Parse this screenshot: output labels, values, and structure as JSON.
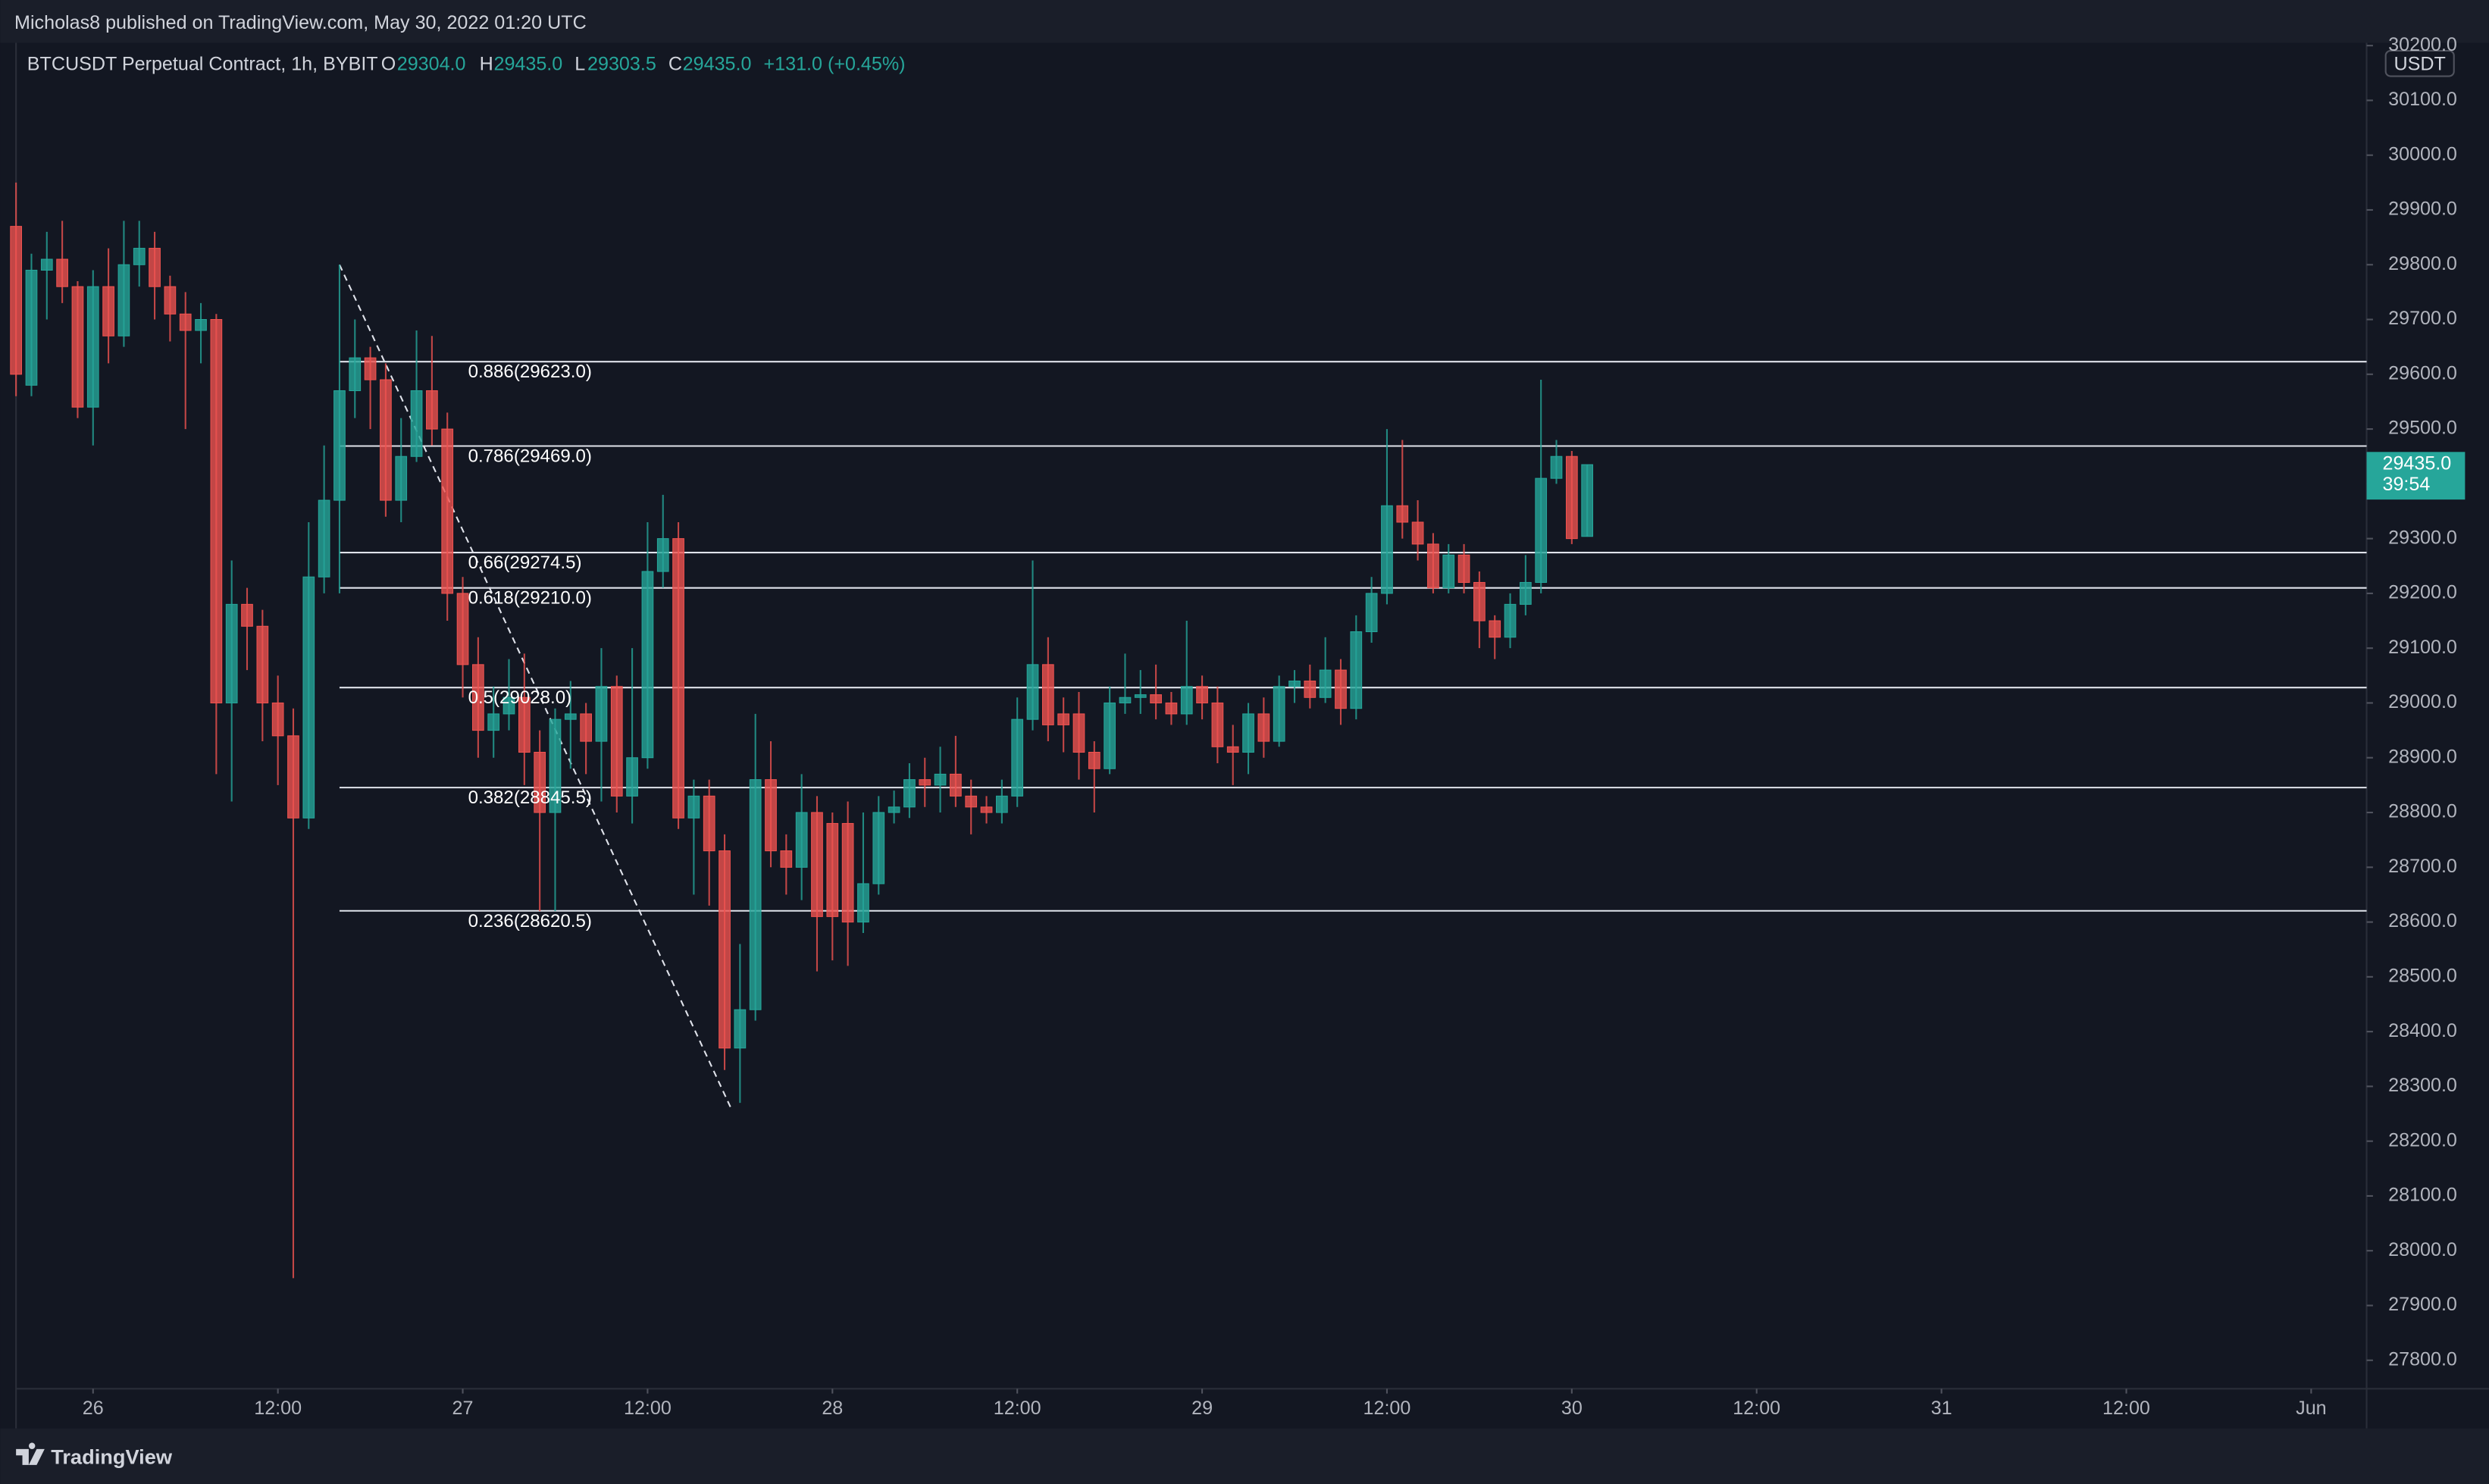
{
  "publisher": "Micholas8 published on TradingView.com, May 30, 2022 01:20 UTC",
  "legend": {
    "symbol": "BTCUSDT Perpetual Contract, 1h, BYBIT",
    "o_key": "O",
    "o": "29304.0",
    "h_key": "H",
    "h": "29435.0",
    "l_key": "L",
    "l": "29303.5",
    "c_key": "C",
    "c": "29435.0",
    "change": "+131.0 (+0.45%)"
  },
  "footer": "TradingView",
  "chart_data": {
    "type": "candlestick",
    "currency": "USDT",
    "up_color": "#26a69a",
    "down_color": "#ef5350",
    "xlim": [
      -5,
      147.6
    ],
    "ylim": [
      27748,
      30205
    ],
    "xticks": [
      {
        "value": 0,
        "label": "26"
      },
      {
        "value": 12,
        "label": "12:00"
      },
      {
        "value": 24,
        "label": "27"
      },
      {
        "value": 36,
        "label": "12:00"
      },
      {
        "value": 48,
        "label": "28"
      },
      {
        "value": 60,
        "label": "12:00"
      },
      {
        "value": 72,
        "label": "29"
      },
      {
        "value": 84,
        "label": "12:00"
      },
      {
        "value": 96,
        "label": "30"
      },
      {
        "value": 108,
        "label": "12:00"
      },
      {
        "value": 120,
        "label": "31"
      },
      {
        "value": 132,
        "label": "12:00"
      },
      {
        "value": 144,
        "label": "Jun"
      }
    ],
    "yticks": [
      {
        "value": 27800,
        "label": "27800.0"
      },
      {
        "value": 27900,
        "label": "27900.0"
      },
      {
        "value": 28000,
        "label": "28000.0"
      },
      {
        "value": 28100,
        "label": "28100.0"
      },
      {
        "value": 28200,
        "label": "28200.0"
      },
      {
        "value": 28300,
        "label": "28300.0"
      },
      {
        "value": 28400,
        "label": "28400.0"
      },
      {
        "value": 28500,
        "label": "28500.0"
      },
      {
        "value": 28600,
        "label": "28600.0"
      },
      {
        "value": 28700,
        "label": "28700.0"
      },
      {
        "value": 28800,
        "label": "28800.0"
      },
      {
        "value": 28900,
        "label": "28900.0"
      },
      {
        "value": 29000,
        "label": "29000.0"
      },
      {
        "value": 29100,
        "label": "29100.0"
      },
      {
        "value": 29200,
        "label": "29200.0"
      },
      {
        "value": 29300,
        "label": "29300.0"
      },
      {
        "value": 29400,
        "label": "29400.0"
      },
      {
        "value": 29500,
        "label": "29500.0"
      },
      {
        "value": 29600,
        "label": "29600.0"
      },
      {
        "value": 29700,
        "label": "29700.0"
      },
      {
        "value": 29800,
        "label": "29800.0"
      },
      {
        "value": 29900,
        "label": "29900.0"
      },
      {
        "value": 30000,
        "label": "30000.0"
      },
      {
        "value": 30100,
        "label": "30100.0"
      },
      {
        "value": 30200,
        "label": "30200.0"
      }
    ],
    "x": [
      -5,
      -4,
      -3,
      -2,
      -1,
      0,
      1,
      2,
      3,
      4,
      5,
      6,
      7,
      8,
      9,
      10,
      11,
      12,
      13,
      14,
      15,
      16,
      17,
      18,
      19,
      20,
      21,
      22,
      23,
      24,
      25,
      26,
      27,
      28,
      29,
      30,
      31,
      32,
      33,
      34,
      35,
      36,
      37,
      38,
      39,
      40,
      41,
      42,
      43,
      44,
      45,
      46,
      47,
      48,
      49,
      50,
      51,
      52,
      53,
      54,
      55,
      56,
      57,
      58,
      59,
      60,
      61,
      62,
      63,
      64,
      65,
      66,
      67,
      68,
      69,
      70,
      71,
      72,
      73,
      74,
      75,
      76,
      77,
      78,
      79,
      80,
      81,
      82,
      83,
      84,
      85,
      86,
      87,
      88,
      89,
      90,
      91,
      92,
      93,
      94,
      95,
      96,
      97
    ],
    "open": [
      29870,
      29580,
      29790,
      29810,
      29760,
      29540,
      29760,
      29670,
      29800,
      29830,
      29760,
      29710,
      29680,
      29700,
      29000,
      29180,
      29140,
      29000,
      28940,
      28790,
      29230,
      29370,
      29570,
      29630,
      29590,
      29370,
      29450,
      29570,
      29500,
      29200,
      29070,
      28950,
      28980,
      29010,
      28910,
      28800,
      28970,
      28980,
      28930,
      29030,
      28830,
      28900,
      29240,
      29300,
      28790,
      28830,
      28730,
      28370,
      28440,
      28860,
      28730,
      28700,
      28800,
      28780,
      28780,
      28600,
      28670,
      28800,
      28810,
      28860,
      28850,
      28870,
      28830,
      28810,
      28800,
      28830,
      28970,
      29070,
      28980,
      28980,
      28910,
      28880,
      29000,
      29010,
      29015,
      29000,
      28980,
      29030,
      29000,
      28920,
      28910,
      28980,
      28930,
      29030,
      29040,
      29010,
      29060,
      28990,
      29130,
      29200,
      29360,
      29330,
      29290,
      29210,
      29270,
      29220,
      29150,
      29120,
      29180,
      29220,
      29410,
      29450,
      29304
    ],
    "high": [
      29950,
      29820,
      29860,
      29880,
      29770,
      29790,
      29830,
      29880,
      29880,
      29860,
      29780,
      29750,
      29730,
      29710,
      29260,
      29210,
      29170,
      29050,
      28990,
      29330,
      29470,
      29800,
      29700,
      29650,
      29620,
      29520,
      29680,
      29670,
      29530,
      29230,
      29120,
      29030,
      29080,
      29090,
      28950,
      28990,
      29040,
      29000,
      29100,
      29050,
      29100,
      29330,
      29380,
      29330,
      28860,
      28860,
      28760,
      28560,
      28980,
      28930,
      28760,
      28870,
      28830,
      28800,
      28820,
      28800,
      28830,
      28840,
      28890,
      28900,
      28920,
      28940,
      28860,
      28830,
      28860,
      29010,
      29260,
      29120,
      29010,
      29020,
      28930,
      29030,
      29090,
      29060,
      29070,
      29020,
      29150,
      29050,
      29030,
      28960,
      29000,
      29010,
      29050,
      29060,
      29070,
      29120,
      29080,
      29160,
      29230,
      29500,
      29480,
      29370,
      29310,
      29290,
      29290,
      29240,
      29160,
      29200,
      29270,
      29590,
      29480,
      29460,
      29435
    ],
    "low": [
      29560,
      29560,
      29700,
      29730,
      29520,
      29470,
      29620,
      29650,
      29760,
      29700,
      29660,
      29500,
      29620,
      28870,
      28820,
      29060,
      28930,
      28850,
      27950,
      28770,
      29200,
      29200,
      29520,
      29500,
      29340,
      29330,
      29440,
      29470,
      29150,
      29010,
      28900,
      28900,
      28950,
      28850,
      28620,
      28620,
      28880,
      28870,
      28820,
      28800,
      28780,
      28880,
      29210,
      28770,
      28650,
      28630,
      28330,
      28270,
      28420,
      28700,
      28650,
      28640,
      28510,
      28530,
      28520,
      28580,
      28650,
      28780,
      28790,
      28810,
      28800,
      28810,
      28760,
      28780,
      28780,
      28810,
      28950,
      28930,
      28910,
      28860,
      28800,
      28870,
      28980,
      28980,
      28970,
      28960,
      28960,
      28970,
      28890,
      28850,
      28870,
      28900,
      28920,
      29000,
      28990,
      29000,
      28960,
      28970,
      29110,
      29180,
      29300,
      29260,
      29200,
      29200,
      29200,
      29100,
      29080,
      29100,
      29160,
      29200,
      29400,
      29290,
      29303.5
    ],
    "close": [
      29600,
      29790,
      29810,
      29760,
      29540,
      29760,
      29670,
      29800,
      29830,
      29760,
      29710,
      29680,
      29700,
      29000,
      29180,
      29140,
      29000,
      28940,
      28790,
      29230,
      29370,
      29570,
      29630,
      29590,
      29370,
      29450,
      29570,
      29500,
      29200,
      29070,
      28950,
      28980,
      29010,
      28910,
      28800,
      28970,
      28980,
      28930,
      29030,
      28830,
      28900,
      29240,
      29300,
      28790,
      28830,
      28730,
      28370,
      28440,
      28860,
      28730,
      28700,
      28800,
      28610,
      28610,
      28600,
      28670,
      28800,
      28810,
      28860,
      28850,
      28870,
      28830,
      28810,
      28800,
      28830,
      28970,
      29070,
      28960,
      28960,
      28910,
      28880,
      29000,
      29010,
      29015,
      29000,
      28980,
      29030,
      29000,
      28920,
      28910,
      28980,
      28930,
      29030,
      29040,
      29010,
      29060,
      28990,
      29130,
      29200,
      29360,
      29330,
      29290,
      29210,
      29270,
      29220,
      29150,
      29120,
      29180,
      29220,
      29410,
      29450,
      29300,
      29435
    ],
    "fib": [
      {
        "value": 29623,
        "label": "0.886(29623.0)"
      },
      {
        "value": 29469,
        "label": "0.786(29469.0)"
      },
      {
        "value": 29274.5,
        "label": "0.66(29274.5)"
      },
      {
        "value": 29210,
        "label": "0.618(29210.0)"
      },
      {
        "value": 29028,
        "label": "0.5(29028.0)"
      },
      {
        "value": 28845.5,
        "label": "0.382(28845.5)"
      },
      {
        "value": 28620.5,
        "label": "0.236(28620.5)"
      }
    ],
    "fib_start_x": 16,
    "trendline": {
      "x": [
        16,
        41.5
      ],
      "y": [
        29800,
        28255
      ]
    },
    "last_price": {
      "value": 29435,
      "label": "29435.0"
    },
    "countdown": "39:54"
  }
}
